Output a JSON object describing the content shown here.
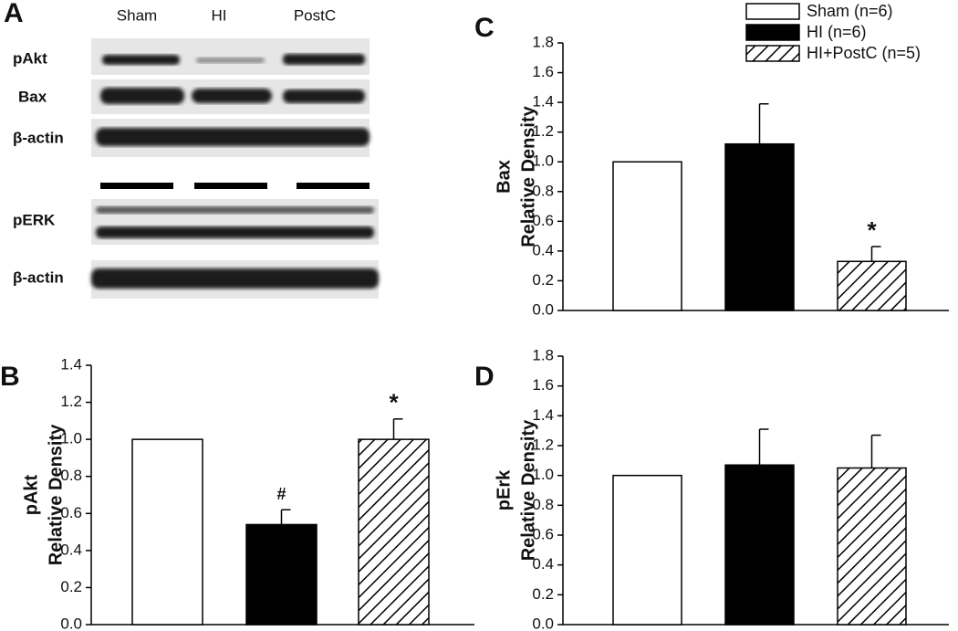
{
  "blot": {
    "panel": "A",
    "lanes": [
      "Sham",
      "HI",
      "PostC"
    ],
    "rows": [
      "pAkt",
      "Bax",
      "β-actin",
      "pERK",
      "β-actin"
    ]
  },
  "chart_data": [
    {
      "panel": "B",
      "type": "bar",
      "ylabel": [
        "pAkt",
        "Relative Density"
      ],
      "series": [
        {
          "color": "#ffffff",
          "hatch": false,
          "values": [
            1.0
          ]
        },
        {
          "color": "#000000",
          "hatch": false,
          "values": [
            0.54
          ],
          "errors": [
            0.08
          ],
          "labels": [
            "#"
          ]
        },
        {
          "color": "#ffffff",
          "hatch": true,
          "values": [
            1.0
          ],
          "errors": [
            0.11
          ],
          "labels": [
            "*"
          ]
        }
      ],
      "ylim": [
        0,
        1.4
      ],
      "yticks": [
        {
          "value": 0,
          "label": "0.0"
        },
        0.2,
        0.4,
        0.6,
        0.8,
        {
          "value": 1,
          "label": "1.0"
        },
        1.2,
        1.4
      ],
      "legend": false
    },
    {
      "panel": "C",
      "type": "bar",
      "ylabel": [
        "Bax",
        "Relative Density"
      ],
      "series": [
        {
          "name": "Sham (n=6)",
          "color": "#ffffff",
          "hatch": false,
          "values": [
            1.0
          ]
        },
        {
          "name": "HI (n=6)",
          "color": "#000000",
          "hatch": false,
          "values": [
            1.12
          ],
          "errors": [
            0.27
          ]
        },
        {
          "name": "HI+PostC (n=5)",
          "color": "#ffffff",
          "hatch": true,
          "values": [
            0.33
          ],
          "errors": [
            0.1
          ],
          "labels": [
            "*"
          ]
        }
      ],
      "ylim": [
        0,
        1.8
      ],
      "yticks": [
        {
          "value": 0,
          "label": "0.0"
        },
        0.2,
        0.4,
        0.6,
        0.8,
        {
          "value": 1,
          "label": "1.0"
        },
        1.2,
        1.4,
        1.6,
        1.8
      ],
      "legend": true
    },
    {
      "panel": "D",
      "type": "bar",
      "ylabel": [
        "pErk",
        "Relative Density"
      ],
      "series": [
        {
          "color": "#ffffff",
          "hatch": false,
          "values": [
            1.0
          ]
        },
        {
          "color": "#000000",
          "hatch": false,
          "values": [
            1.07
          ],
          "errors": [
            0.24
          ]
        },
        {
          "color": "#ffffff",
          "hatch": true,
          "values": [
            1.05
          ],
          "errors": [
            0.22
          ]
        }
      ],
      "ylim": [
        0,
        1.8
      ],
      "yticks": [
        {
          "value": 0,
          "label": "0.0"
        },
        0.2,
        0.4,
        0.6,
        0.8,
        {
          "value": 1,
          "label": "1.0"
        },
        1.2,
        1.4,
        1.6,
        1.8
      ],
      "legend": false
    }
  ]
}
